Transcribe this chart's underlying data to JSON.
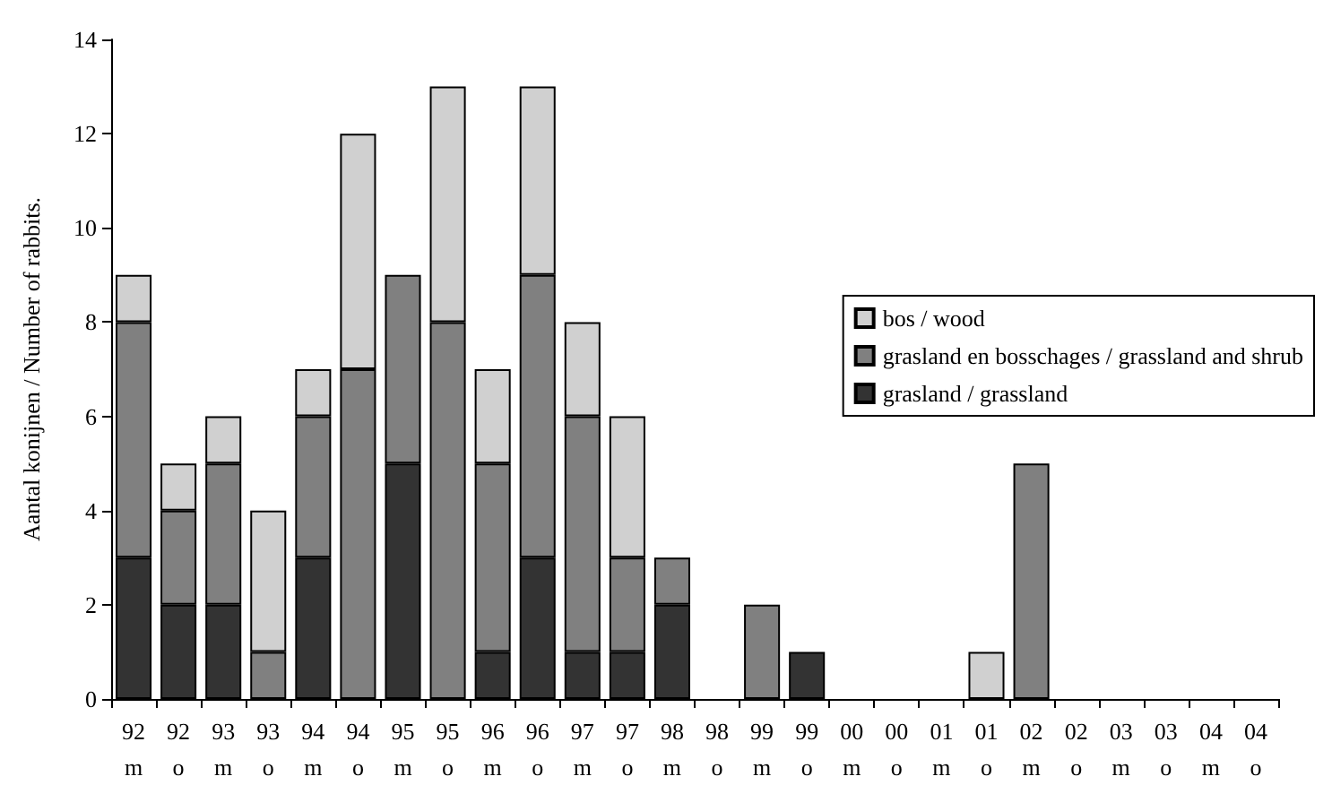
{
  "chart_data": {
    "type": "bar",
    "stacked": true,
    "ylabel": "Aantal konijnen / Number of rabbits.",
    "categories": [
      "92\nm",
      "92\no",
      "93\nm",
      "93\no",
      "94\nm",
      "94\no",
      "95\nm",
      "95\no",
      "96\nm",
      "96\no",
      "97\nm",
      "97\no",
      "98\nm",
      "98\no",
      "99\nm",
      "99\no",
      "00\nm",
      "00\no",
      "01\nm",
      "01\no",
      "02\nm",
      "02\no",
      "03\nm",
      "03\no",
      "04\nm",
      "04\no"
    ],
    "series": [
      {
        "name": "grasland / grassland",
        "color": "#333333",
        "values": [
          3,
          2,
          2,
          0,
          3,
          0,
          5,
          0,
          1,
          3,
          1,
          1,
          2,
          0,
          0,
          1,
          0,
          0,
          0,
          0,
          0,
          0,
          0,
          0,
          0,
          0
        ]
      },
      {
        "name": "grasland en bosschages / grassland and shrub",
        "color": "#808080",
        "values": [
          5,
          2,
          3,
          1,
          3,
          7,
          4,
          8,
          4,
          6,
          5,
          2,
          1,
          0,
          2,
          0,
          0,
          0,
          0,
          0,
          5,
          0,
          0,
          0,
          0,
          0
        ]
      },
      {
        "name": "bos / wood",
        "color": "#d0d0d0",
        "values": [
          1,
          1,
          1,
          3,
          1,
          5,
          0,
          5,
          2,
          4,
          2,
          3,
          0,
          0,
          0,
          0,
          0,
          0,
          0,
          1,
          0,
          0,
          0,
          0,
          0,
          0
        ]
      }
    ],
    "ylim": [
      0,
      14
    ],
    "yticks": [
      0,
      2,
      4,
      6,
      8,
      10,
      12,
      14
    ],
    "grid": false,
    "legend": "right"
  }
}
